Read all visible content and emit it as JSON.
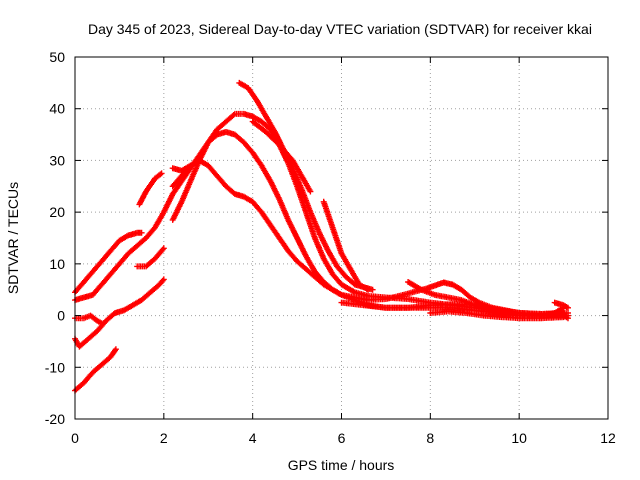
{
  "chart_data": {
    "type": "scatter",
    "title": "Day 345 of 2023, Sidereal Day-to-day VTEC variation (SDTVAR) for receiver kkai",
    "xlabel": "GPS time / hours",
    "ylabel": "SDTVAR / TECUs",
    "xlim": [
      0,
      12
    ],
    "ylim": [
      -20,
      50
    ],
    "xticks": [
      0,
      2,
      4,
      6,
      8,
      10,
      12
    ],
    "yticks": [
      -20,
      -10,
      0,
      10,
      20,
      30,
      40,
      50
    ],
    "xtick_labels": [
      "0",
      "2",
      "4",
      "6",
      "8",
      "10",
      "12"
    ],
    "ytick_labels": [
      "-20",
      "-10",
      "0",
      "10",
      "20",
      "30",
      "40",
      "50"
    ],
    "grid": true,
    "marker": "+",
    "color": "#ff0000",
    "series": [
      {
        "name": "track-1",
        "points": [
          [
            0.0,
            -14.5
          ],
          [
            0.2,
            -13.0
          ],
          [
            0.4,
            -11.0
          ],
          [
            0.6,
            -9.5
          ],
          [
            0.8,
            -8.0
          ],
          [
            0.92,
            -6.5
          ]
        ]
      },
      {
        "name": "track-2",
        "points": [
          [
            0.0,
            -4.5
          ],
          [
            0.1,
            -6.0
          ],
          [
            0.3,
            -4.5
          ],
          [
            0.5,
            -3.0
          ],
          [
            0.7,
            -1.0
          ],
          [
            0.9,
            0.5
          ],
          [
            1.1,
            1.0
          ],
          [
            1.3,
            2.0
          ],
          [
            1.5,
            3.0
          ],
          [
            1.7,
            4.5
          ],
          [
            1.9,
            6.0
          ],
          [
            2.0,
            7.0
          ]
        ]
      },
      {
        "name": "track-3",
        "points": [
          [
            0.0,
            -0.5
          ],
          [
            0.2,
            -0.5
          ],
          [
            0.35,
            0.0
          ],
          [
            0.5,
            -1.0
          ],
          [
            0.6,
            -1.5
          ]
        ]
      },
      {
        "name": "track-4",
        "points": [
          [
            0.0,
            3.0
          ],
          [
            0.2,
            3.5
          ],
          [
            0.4,
            4.0
          ],
          [
            0.6,
            6.0
          ],
          [
            0.8,
            8.0
          ],
          [
            1.0,
            10.0
          ],
          [
            1.2,
            12.0
          ],
          [
            1.4,
            13.5
          ],
          [
            1.6,
            15.0
          ],
          [
            1.8,
            17.0
          ],
          [
            2.0,
            20.0
          ],
          [
            2.2,
            23.5
          ],
          [
            2.4,
            26.0
          ],
          [
            2.6,
            28.5
          ],
          [
            2.8,
            31.0
          ],
          [
            3.0,
            33.5
          ],
          [
            3.2,
            35.0
          ],
          [
            3.4,
            35.5
          ],
          [
            3.6,
            35.0
          ],
          [
            3.8,
            33.5
          ],
          [
            4.0,
            31.5
          ],
          [
            4.2,
            29.0
          ],
          [
            4.4,
            26.0
          ],
          [
            4.6,
            22.5
          ],
          [
            4.8,
            18.5
          ],
          [
            5.0,
            15.0
          ],
          [
            5.2,
            11.5
          ],
          [
            5.4,
            8.5
          ],
          [
            5.6,
            6.5
          ],
          [
            5.8,
            5.0
          ],
          [
            6.0,
            4.0
          ],
          [
            6.3,
            3.5
          ],
          [
            6.6,
            3.0
          ],
          [
            7.0,
            3.2
          ],
          [
            7.3,
            3.8
          ],
          [
            7.6,
            4.5
          ],
          [
            7.9,
            5.2
          ],
          [
            8.1,
            5.8
          ],
          [
            8.3,
            6.4
          ],
          [
            8.5,
            6.0
          ],
          [
            8.7,
            5.0
          ],
          [
            8.9,
            3.5
          ],
          [
            9.1,
            2.5
          ],
          [
            9.4,
            1.5
          ],
          [
            9.7,
            1.0
          ],
          [
            10.0,
            0.5
          ],
          [
            10.5,
            0.0
          ],
          [
            10.8,
            0.5
          ],
          [
            11.0,
            1.5
          ]
        ]
      },
      {
        "name": "track-5",
        "points": [
          [
            0.0,
            4.5
          ],
          [
            0.2,
            6.5
          ],
          [
            0.4,
            8.5
          ],
          [
            0.6,
            10.5
          ],
          [
            0.8,
            12.5
          ],
          [
            1.0,
            14.5
          ],
          [
            1.2,
            15.5
          ],
          [
            1.4,
            16.0
          ],
          [
            1.5,
            16.0
          ]
        ]
      },
      {
        "name": "track-6",
        "points": [
          [
            1.45,
            21.5
          ],
          [
            1.6,
            24.0
          ],
          [
            1.8,
            26.5
          ],
          [
            1.95,
            27.5
          ]
        ]
      },
      {
        "name": "track-7",
        "points": [
          [
            1.4,
            9.5
          ],
          [
            1.6,
            9.5
          ],
          [
            1.8,
            11.0
          ],
          [
            2.0,
            13.0
          ]
        ]
      },
      {
        "name": "track-8",
        "points": [
          [
            2.2,
            18.5
          ],
          [
            2.4,
            22.0
          ],
          [
            2.6,
            26.0
          ],
          [
            2.8,
            30.0
          ],
          [
            3.0,
            33.5
          ],
          [
            3.2,
            36.0
          ],
          [
            3.4,
            37.5
          ],
          [
            3.6,
            39.0
          ],
          [
            3.8,
            39.0
          ],
          [
            4.0,
            38.5
          ],
          [
            4.2,
            37.5
          ],
          [
            4.4,
            36.0
          ],
          [
            4.6,
            33.0
          ],
          [
            4.8,
            29.5
          ],
          [
            5.0,
            25.0
          ],
          [
            5.2,
            20.0
          ],
          [
            5.4,
            15.0
          ],
          [
            5.6,
            11.0
          ],
          [
            5.8,
            8.0
          ],
          [
            6.0,
            6.0
          ],
          [
            6.3,
            4.5
          ],
          [
            6.6,
            3.8
          ],
          [
            7.0,
            3.5
          ],
          [
            7.5,
            3.2
          ],
          [
            8.0,
            2.5
          ],
          [
            8.5,
            2.0
          ],
          [
            9.0,
            1.5
          ],
          [
            9.5,
            1.0
          ],
          [
            10.0,
            0.5
          ],
          [
            10.5,
            0.3
          ],
          [
            11.0,
            0.5
          ]
        ]
      },
      {
        "name": "track-9",
        "points": [
          [
            2.2,
            25.0
          ],
          [
            2.4,
            27.0
          ],
          [
            2.6,
            29.0
          ],
          [
            2.8,
            30.0
          ],
          [
            3.0,
            29.0
          ],
          [
            3.2,
            27.0
          ],
          [
            3.4,
            25.0
          ],
          [
            3.6,
            23.5
          ],
          [
            3.8,
            23.0
          ],
          [
            4.0,
            22.0
          ],
          [
            4.2,
            20.0
          ],
          [
            4.4,
            17.5
          ],
          [
            4.6,
            15.0
          ],
          [
            4.8,
            12.5
          ],
          [
            5.0,
            10.5
          ],
          [
            5.2,
            9.0
          ],
          [
            5.4,
            7.5
          ],
          [
            5.6,
            6.0
          ],
          [
            5.8,
            5.0
          ],
          [
            6.0,
            4.0
          ],
          [
            6.3,
            3.0
          ],
          [
            6.6,
            2.0
          ],
          [
            7.0,
            1.5
          ],
          [
            7.5,
            1.5
          ],
          [
            8.0,
            2.0
          ],
          [
            8.5,
            2.2
          ],
          [
            9.0,
            2.0
          ],
          [
            9.3,
            1.5
          ],
          [
            9.6,
            1.0
          ],
          [
            10.0,
            0.5
          ],
          [
            10.5,
            0.3
          ],
          [
            11.1,
            0.5
          ]
        ]
      },
      {
        "name": "track-10",
        "points": [
          [
            2.2,
            28.5
          ],
          [
            2.4,
            28.0
          ],
          [
            2.6,
            29.0
          ]
        ]
      },
      {
        "name": "track-11",
        "points": [
          [
            3.7,
            45.0
          ],
          [
            3.9,
            44.0
          ],
          [
            4.1,
            41.5
          ],
          [
            4.3,
            38.5
          ],
          [
            4.5,
            35.5
          ],
          [
            4.7,
            32.0
          ],
          [
            4.9,
            28.5
          ],
          [
            5.1,
            24.5
          ],
          [
            5.3,
            20.0
          ],
          [
            5.5,
            16.0
          ],
          [
            5.7,
            12.5
          ],
          [
            5.9,
            9.5
          ],
          [
            6.1,
            7.5
          ],
          [
            6.3,
            6.0
          ],
          [
            6.5,
            5.5
          ],
          [
            6.7,
            5.0
          ]
        ]
      },
      {
        "name": "track-12",
        "points": [
          [
            4.0,
            37.5
          ],
          [
            4.3,
            35.5
          ],
          [
            4.6,
            33.0
          ],
          [
            4.9,
            30.0
          ],
          [
            5.1,
            27.0
          ],
          [
            5.3,
            24.0
          ]
        ]
      },
      {
        "name": "track-13",
        "points": [
          [
            5.6,
            22.0
          ],
          [
            5.8,
            17.0
          ],
          [
            6.0,
            12.0
          ],
          [
            6.2,
            9.0
          ],
          [
            6.4,
            6.0
          ],
          [
            6.6,
            5.0
          ]
        ]
      },
      {
        "name": "track-14",
        "points": [
          [
            6.0,
            2.5
          ],
          [
            6.5,
            2.0
          ],
          [
            7.0,
            1.5
          ],
          [
            7.5,
            1.5
          ],
          [
            8.0,
            1.5
          ],
          [
            8.5,
            1.5
          ],
          [
            9.0,
            1.0
          ],
          [
            9.5,
            0.5
          ],
          [
            10.0,
            0.0
          ],
          [
            10.5,
            0.0
          ],
          [
            11.1,
            0.0
          ]
        ]
      },
      {
        "name": "track-15",
        "points": [
          [
            7.5,
            6.5
          ],
          [
            7.8,
            5.0
          ],
          [
            8.1,
            4.0
          ],
          [
            8.4,
            3.5
          ],
          [
            8.7,
            3.0
          ],
          [
            9.0,
            2.0
          ],
          [
            9.3,
            1.2
          ],
          [
            9.6,
            0.5
          ],
          [
            10.0,
            0.0
          ],
          [
            10.5,
            0.0
          ],
          [
            11.0,
            0.0
          ],
          [
            11.1,
            -0.5
          ]
        ]
      },
      {
        "name": "track-16",
        "points": [
          [
            8.0,
            0.5
          ],
          [
            8.4,
            0.8
          ],
          [
            8.8,
            0.5
          ],
          [
            9.2,
            0.0
          ],
          [
            9.6,
            -0.3
          ],
          [
            10.0,
            -0.5
          ],
          [
            10.5,
            -0.5
          ],
          [
            11.0,
            -0.3
          ]
        ]
      },
      {
        "name": "track-17",
        "points": [
          [
            10.8,
            2.5
          ],
          [
            11.0,
            2.0
          ],
          [
            11.1,
            1.5
          ]
        ]
      }
    ]
  }
}
